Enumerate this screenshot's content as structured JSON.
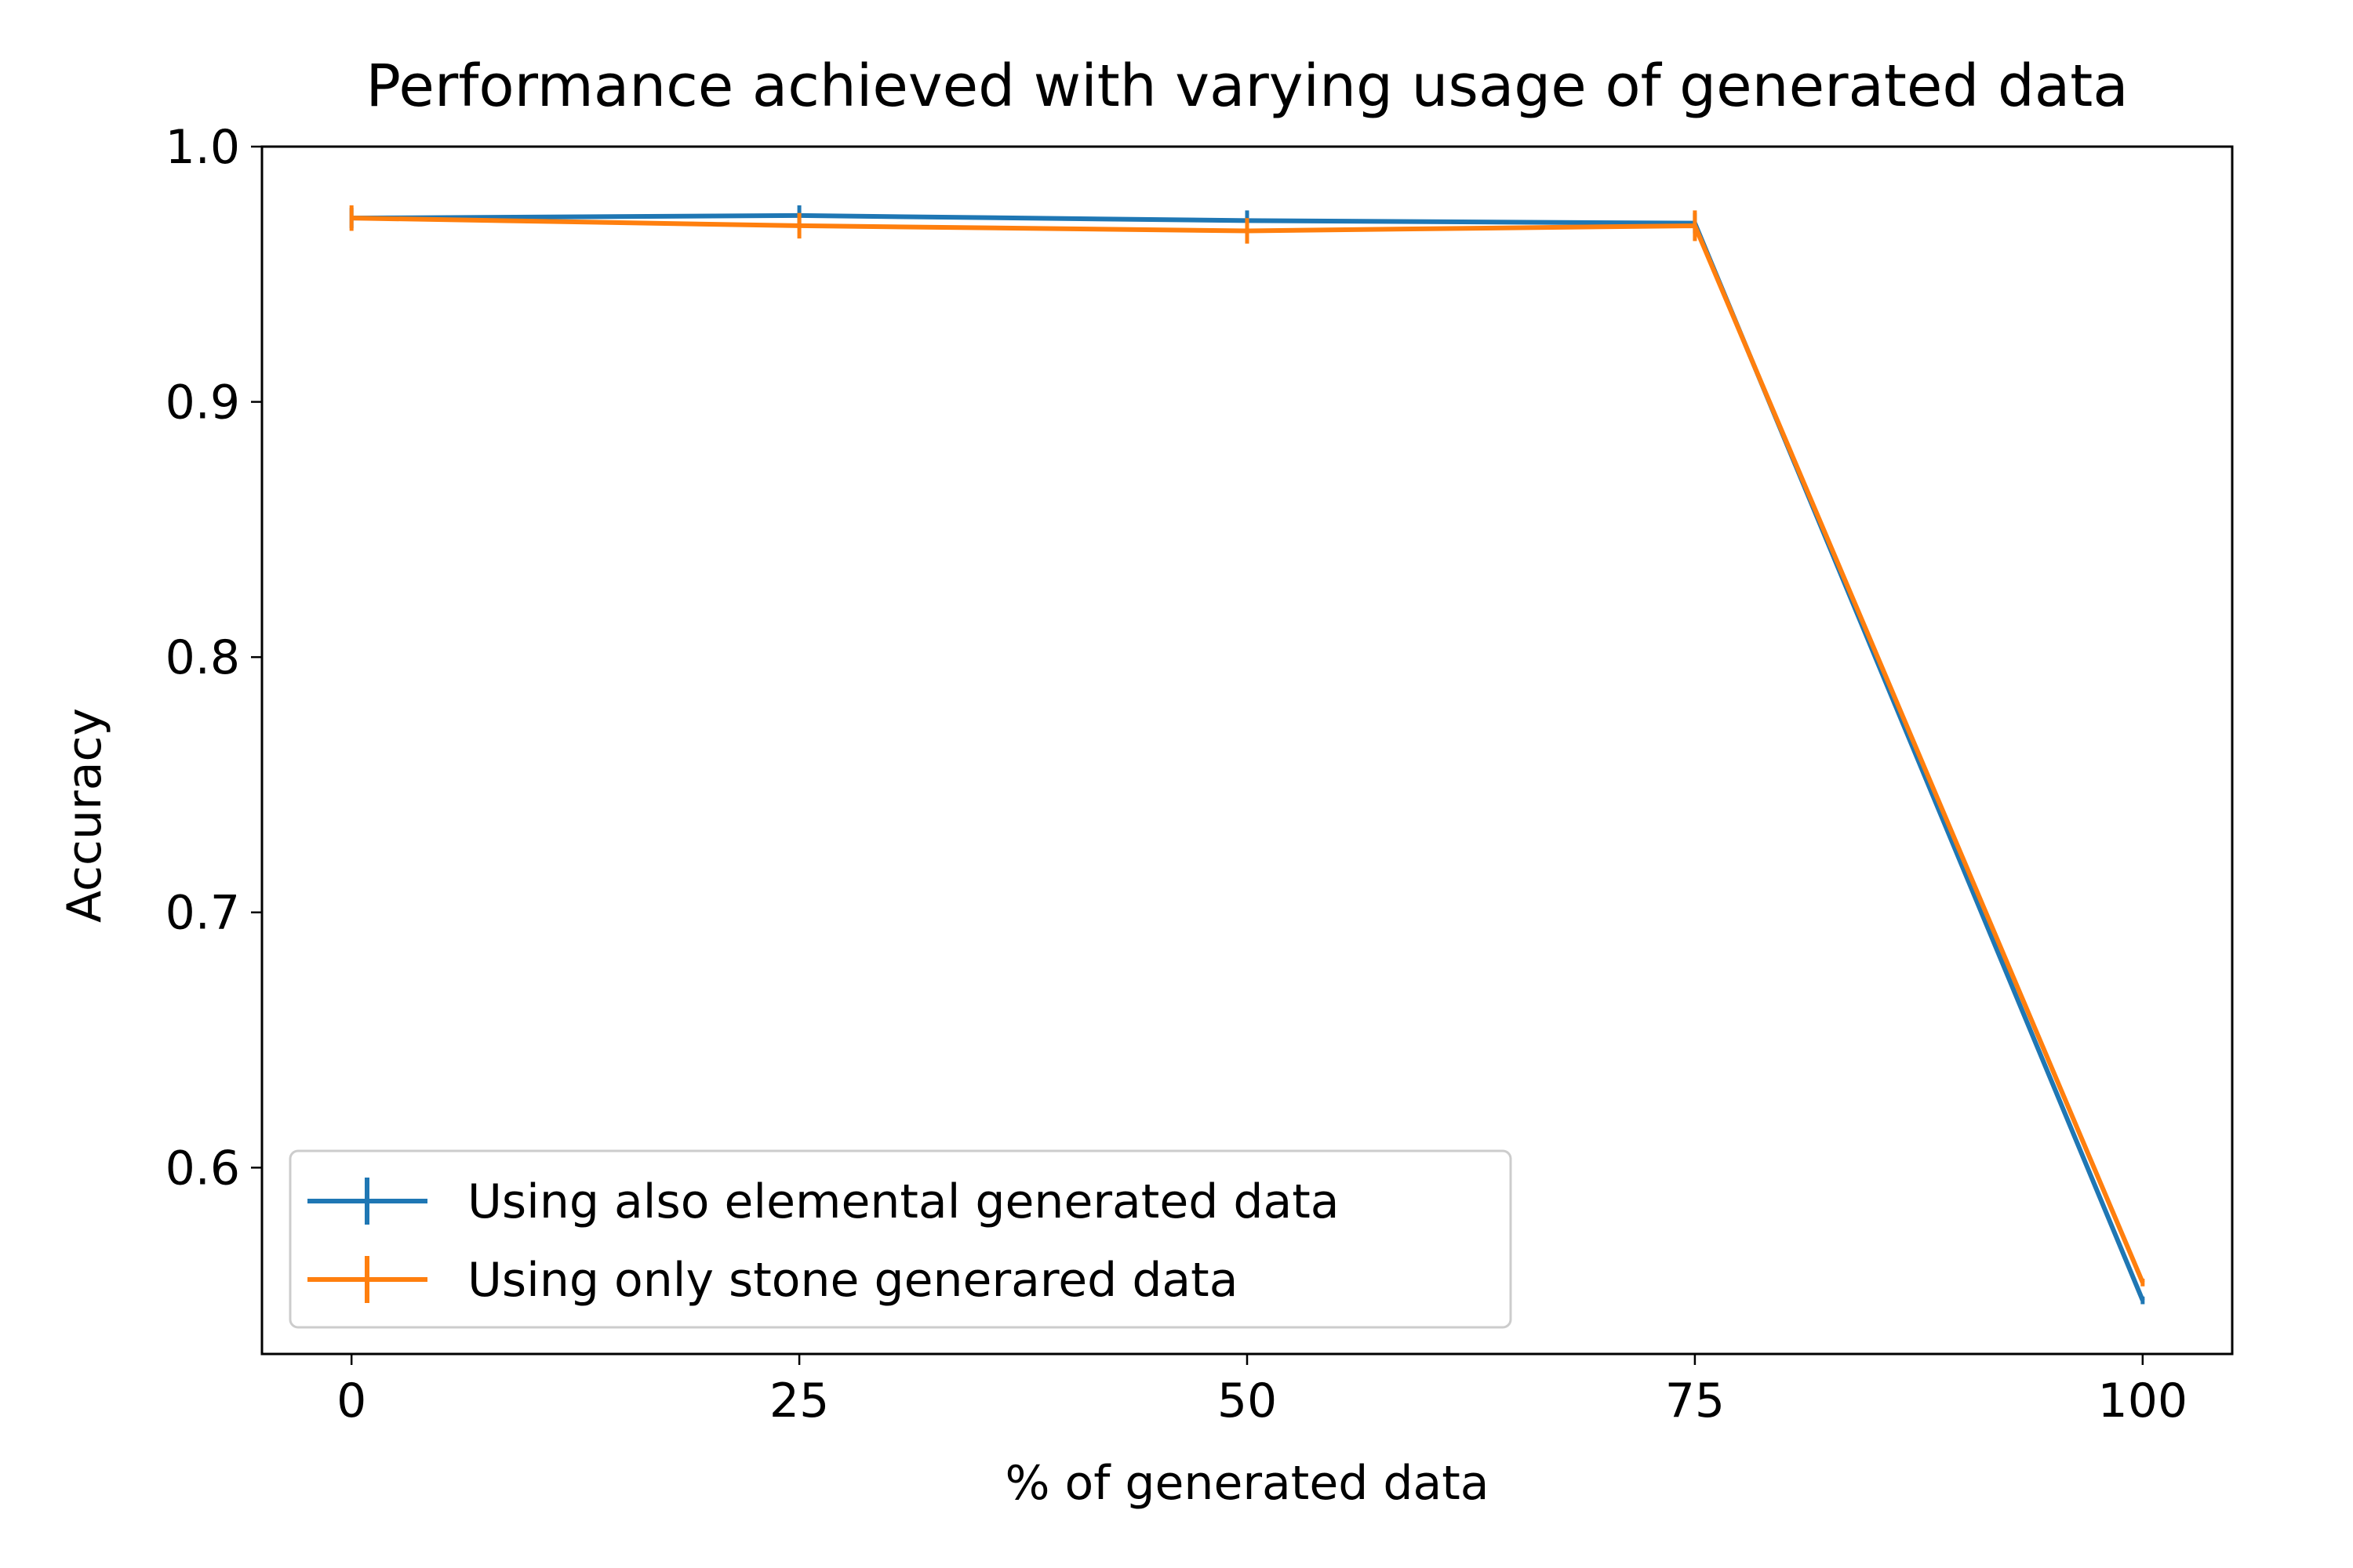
{
  "chart_data": {
    "type": "line",
    "title": "Performance achieved with varying usage of generated data",
    "xlabel": "% of generated data",
    "ylabel": "Accuracy",
    "xlim": [
      -5,
      105
    ],
    "ylim": [
      0.527,
      1.0
    ],
    "x": [
      0,
      25,
      50,
      75,
      100
    ],
    "x_ticks": [
      0,
      25,
      50,
      75,
      100
    ],
    "x_tick_labels": [
      "0",
      "25",
      "50",
      "75",
      "100"
    ],
    "y_ticks": [
      0.6,
      0.7,
      0.8,
      0.9,
      1.0
    ],
    "y_tick_labels": [
      "0.6",
      "0.7",
      "0.8",
      "0.9",
      "1.0"
    ],
    "grid": false,
    "legend_position": "lower-left",
    "series": [
      {
        "name": "Using also elemental generated data",
        "color": "#1f77b4",
        "values": [
          0.972,
          0.973,
          0.971,
          0.97,
          0.548
        ],
        "errors": [
          0.004,
          0.004,
          0.004,
          0.004,
          0.001
        ]
      },
      {
        "name": "Using only stone generared data",
        "color": "#ff7f0e",
        "values": [
          0.972,
          0.969,
          0.967,
          0.969,
          0.555
        ],
        "errors": [
          0.005,
          0.005,
          0.005,
          0.006,
          0.001
        ]
      }
    ]
  }
}
